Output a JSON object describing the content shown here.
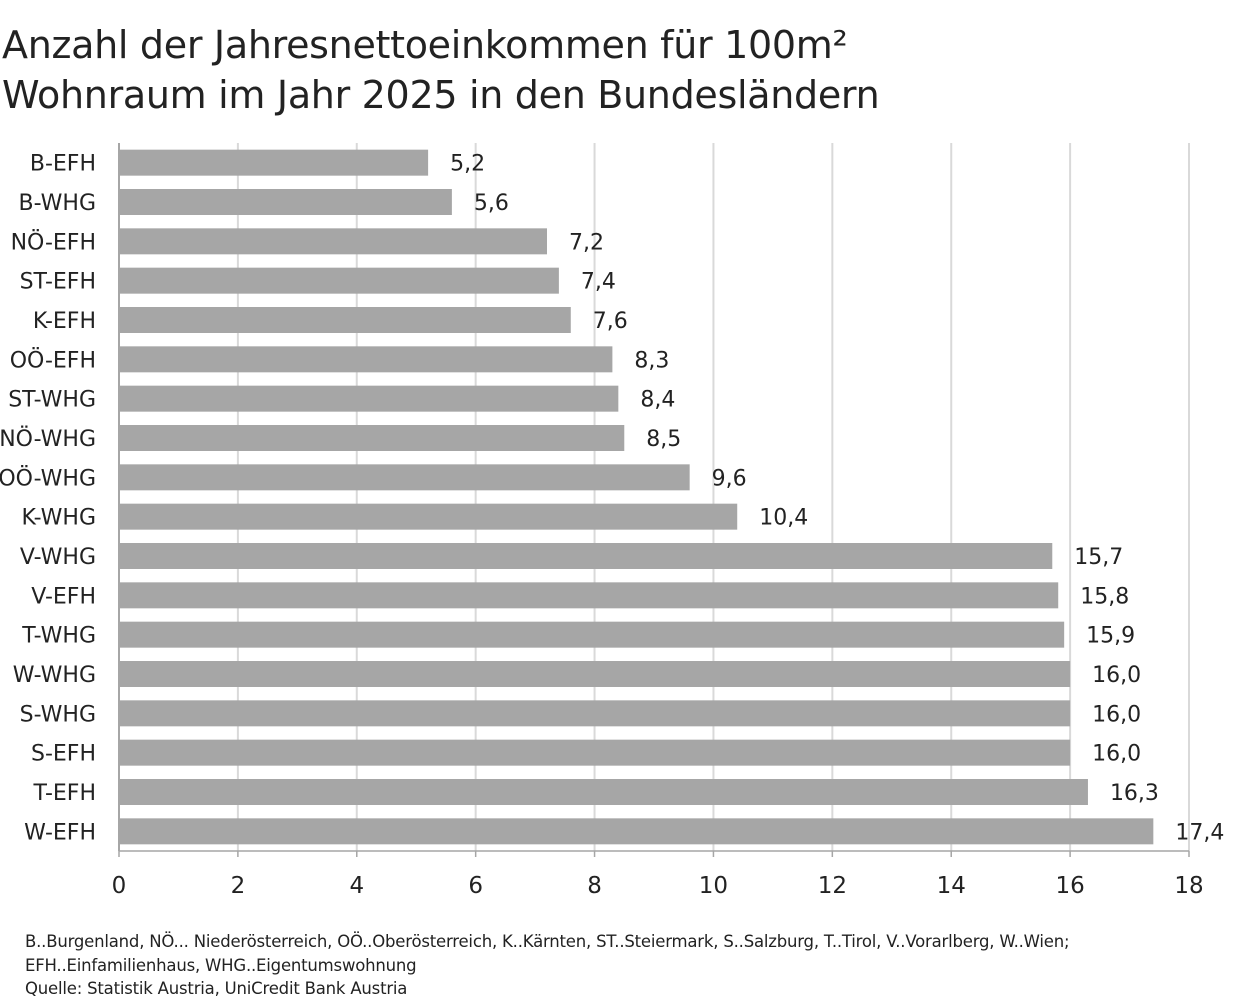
{
  "title_lines": [
    "Anzahl der Jahresnettoeinkommen für 100m²",
    "Wohnraum im Jahr 2025 in den Bundesländern"
  ],
  "chart_data": {
    "type": "bar",
    "orientation": "horizontal",
    "title": "Anzahl der Jahresnettoeinkommen für 100m² Wohnraum im Jahr 2025 in den Bundesländern",
    "categories": [
      "B-EFH",
      "B-WHG",
      "NÖ-EFH",
      "ST-EFH",
      "K-EFH",
      "OÖ-EFH",
      "ST-WHG",
      "NÖ-WHG",
      "OÖ-WHG",
      "K-WHG",
      "V-WHG",
      "V-EFH",
      "T-WHG",
      "W-WHG",
      "S-WHG",
      "S-EFH",
      "T-EFH",
      "W-EFH"
    ],
    "values": [
      5.2,
      5.6,
      7.2,
      7.4,
      7.6,
      8.3,
      8.4,
      8.5,
      9.6,
      10.4,
      15.7,
      15.8,
      15.9,
      16.0,
      16.0,
      16.0,
      16.3,
      17.4
    ],
    "data_labels": [
      "5,2",
      "5,6",
      "7,2",
      "7,4",
      "7,6",
      "8,3",
      "8,4",
      "8,5",
      "9,6",
      "10,4",
      "15,7",
      "15,8",
      "15,9",
      "16,0",
      "16,0",
      "16,0",
      "16,3",
      "17,4"
    ],
    "xlim": [
      0,
      18
    ],
    "xticks": [
      0,
      2,
      4,
      6,
      8,
      10,
      12,
      14,
      16,
      18
    ],
    "xtick_labels": [
      "0",
      "2",
      "4",
      "6",
      "8",
      "10",
      "12",
      "14",
      "16",
      "18"
    ],
    "xlabel": "",
    "ylabel": "",
    "grid": "vertical",
    "legend": "none",
    "colors": {
      "bar": "#a6a6a6",
      "grid": "#d9d9d9",
      "axis": "#a6a6a6",
      "text": "#222222"
    }
  },
  "footnote_lines": [
    "B..Burgenland, NÖ... Niederösterreich, OÖ..Oberösterreich, K..Kärnten, ST..Steiermark, S..Salzburg, T..Tirol, V..Vorarlberg, W..Wien;",
    "EFH..Einfamilienhaus, WHG..Eigentumswohnung",
    "Quelle: Statistik Austria, UniCredit Bank Austria"
  ]
}
